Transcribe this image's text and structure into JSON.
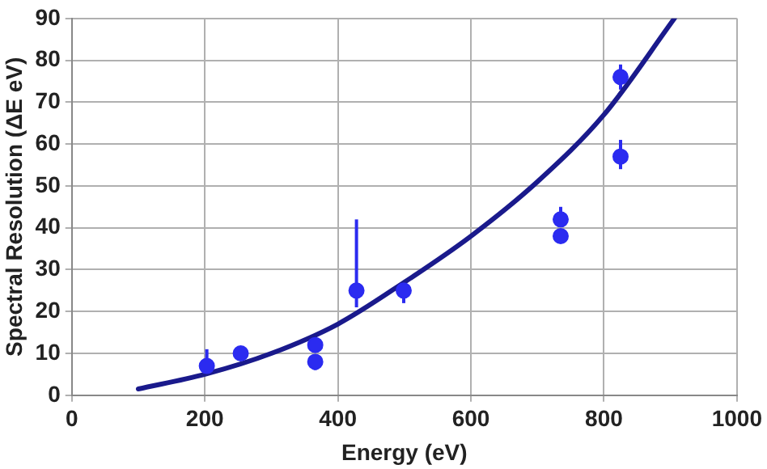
{
  "chart_data": {
    "type": "scatter",
    "xlabel": "Energy (eV)",
    "ylabel": "Spectral Resolution (ΔE eV)",
    "xlim": [
      0,
      1000
    ],
    "xticks": [
      0,
      200,
      400,
      600,
      800,
      1000
    ],
    "ylim": [
      0,
      90
    ],
    "yticks": [
      0,
      10,
      20,
      30,
      40,
      50,
      60,
      70,
      80,
      90
    ],
    "grid": true,
    "legend": false,
    "series": [
      {
        "color": "#2b2bf0",
        "marker": "circle",
        "x": [
          203,
          254,
          366,
          366,
          428,
          499,
          735,
          735,
          825,
          825
        ],
        "values": [
          7,
          10,
          12,
          8,
          25,
          25,
          42,
          38,
          76,
          57
        ],
        "errors": [
          [
            6,
            11
          ],
          null,
          null,
          [
            6,
            8
          ],
          [
            21,
            42
          ],
          [
            22,
            25
          ],
          [
            42,
            45
          ],
          null,
          [
            73,
            79
          ],
          [
            54,
            61
          ]
        ]
      },
      {
        "type": "line",
        "color": "#1a1a8c",
        "marker": "none",
        "line_style": "solid",
        "x": [
          100,
          200,
          300,
          400,
          500,
          600,
          700,
          800,
          906
        ],
        "values": [
          1.5,
          5,
          10,
          17,
          27,
          38,
          51,
          67,
          90
        ]
      }
    ]
  }
}
